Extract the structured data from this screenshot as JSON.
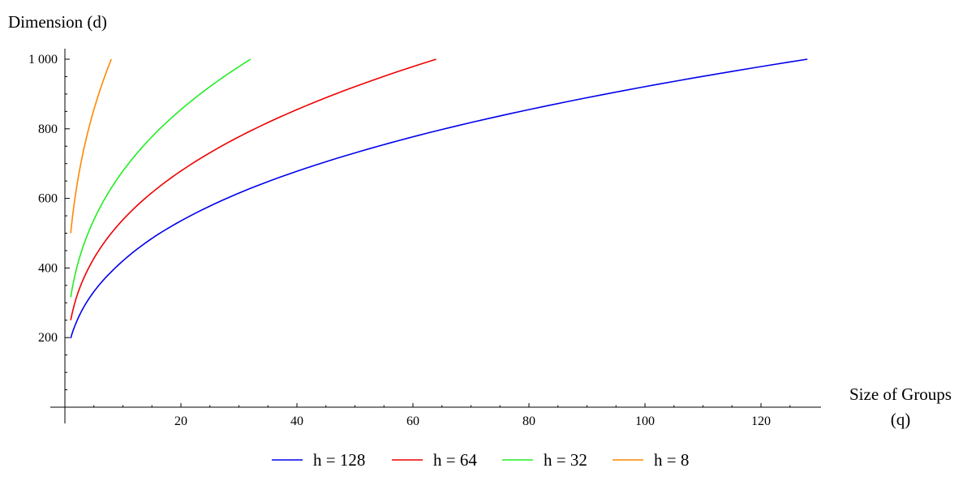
{
  "chart_data": {
    "type": "line",
    "title": "",
    "xlabel_line1": "Size of Groups",
    "xlabel_line2": "(q)",
    "ylabel": "Dimension (d)",
    "xlim": [
      0,
      130
    ],
    "ylim": [
      0,
      1000
    ],
    "x_ticks": [
      20,
      40,
      60,
      80,
      100,
      120
    ],
    "x_tick_labels": [
      "20",
      "40",
      "60",
      "80",
      "100",
      "120"
    ],
    "y_ticks": [
      200,
      400,
      600,
      800,
      1000
    ],
    "y_tick_labels": [
      "200",
      "400",
      "600",
      "800",
      "1 000"
    ],
    "grid": false,
    "legend_position": "bottom",
    "series": [
      {
        "name": "h = 128",
        "color": "#0000ee",
        "x": [
          1,
          2,
          4,
          8,
          16,
          32,
          64,
          128
        ],
        "values": [
          198,
          245,
          308,
          389,
          496,
          629,
          794,
          1000
        ]
      },
      {
        "name": "h = 64",
        "color": "#ee0000",
        "x": [
          1,
          2,
          4,
          8,
          16,
          32,
          64
        ],
        "values": [
          250,
          316,
          397,
          500,
          630,
          794,
          1000
        ]
      },
      {
        "name": "h = 32",
        "color": "#22ee22",
        "x": [
          1,
          2,
          4,
          8,
          16,
          32
        ],
        "values": [
          316,
          398,
          500,
          630,
          794,
          1000
        ]
      },
      {
        "name": "h = 8",
        "color": "#ff8800",
        "x": [
          1,
          2,
          4,
          8
        ],
        "values": [
          500,
          630,
          794,
          1000
        ]
      }
    ]
  }
}
